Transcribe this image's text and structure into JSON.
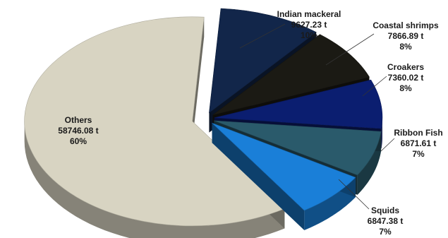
{
  "chart_data": {
    "type": "pie",
    "title": "",
    "three_d": true,
    "exploded": true,
    "legend": "none",
    "unit": "t",
    "slices": [
      {
        "label": "Indian mackeral",
        "value_text": "9627.23 t",
        "value": 9627.23,
        "percent_text": "10%",
        "percent": 10,
        "color": "#12264a"
      },
      {
        "label": "Coastal shrimps",
        "value_text": "7866.89 t",
        "value": 7866.89,
        "percent_text": "8%",
        "percent": 8,
        "color": "#1b1a14"
      },
      {
        "label": "Croakers",
        "value_text": "7360.02 t",
        "value": 7360.02,
        "percent_text": "8%",
        "percent": 8,
        "color": "#0b1e70"
      },
      {
        "label": "Ribbon Fish",
        "value_text": "6871.61 t",
        "value": 6871.61,
        "percent_text": "7%",
        "percent": 7,
        "color": "#2a5a6b"
      },
      {
        "label": "Squids",
        "value_text": "6847.38 t",
        "value": 6847.38,
        "percent_text": "7%",
        "percent": 7,
        "color": "#1a7fd8"
      },
      {
        "label": "Others",
        "value_text": "58746.08 t",
        "value": 58746.08,
        "percent_text": "60%",
        "percent": 60,
        "color": "#d8d4c2"
      }
    ]
  }
}
